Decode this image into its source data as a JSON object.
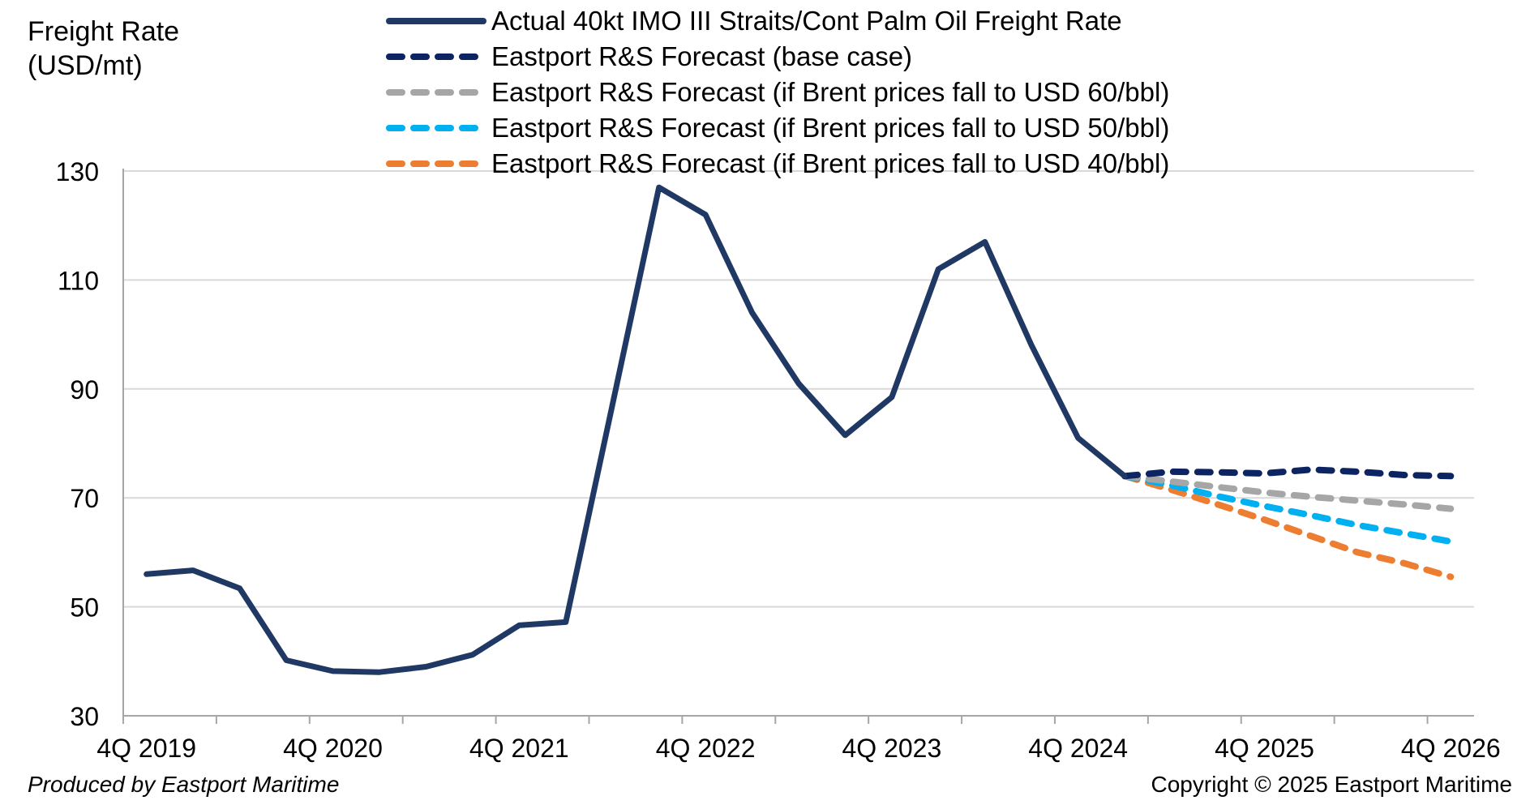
{
  "chart_data": {
    "type": "line",
    "ylabel": "Freight Rate\n(USD/mt)",
    "xlabel": "",
    "ylim": [
      30,
      130
    ],
    "yticks": [
      30,
      50,
      70,
      90,
      110,
      130
    ],
    "xtick_labels": [
      "4Q 2019",
      "4Q 2020",
      "4Q 2021",
      "4Q 2022",
      "4Q 2023",
      "4Q 2024",
      "4Q 2025",
      "4Q 2026"
    ],
    "grid": "horizontal",
    "legend_position": "top-center",
    "x": [
      "4Q 2019",
      "1Q 2020",
      "2Q 2020",
      "3Q 2020",
      "4Q 2020",
      "1Q 2021",
      "2Q 2021",
      "3Q 2021",
      "4Q 2021",
      "1Q 2022",
      "2Q 2022",
      "3Q 2022",
      "4Q 2022",
      "1Q 2023",
      "2Q 2023",
      "3Q 2023",
      "4Q 2023",
      "1Q 2024",
      "2Q 2024",
      "3Q 2024",
      "4Q 2024",
      "1Q 2025",
      "2Q 2025",
      "3Q 2025",
      "4Q 2025",
      "1Q 2026",
      "2Q 2026",
      "3Q 2026",
      "4Q 2026"
    ],
    "series": [
      {
        "name": "Actual 40kt IMO III Straits/Cont Palm Oil Freight Rate",
        "color": "#1f3864",
        "style": "solid",
        "values": [
          56,
          56.7,
          53.4,
          40.2,
          38.2,
          38,
          39,
          41.2,
          46.6,
          47.2,
          87,
          127,
          122,
          104,
          91,
          81.5,
          88.5,
          112,
          117,
          98,
          81,
          74,
          null,
          null,
          null,
          null,
          null,
          null,
          null
        ]
      },
      {
        "name": "Eastport R&S Forecast (base case)",
        "color": "#0c2461",
        "style": "dashed",
        "values": [
          null,
          null,
          null,
          null,
          null,
          null,
          null,
          null,
          null,
          null,
          null,
          null,
          null,
          null,
          null,
          null,
          null,
          null,
          null,
          null,
          null,
          74,
          74.8,
          74.7,
          74.5,
          75.2,
          74.8,
          74.2,
          74
        ]
      },
      {
        "name": "Eastport R&S Forecast (if Brent prices fall to USD 60/bbl)",
        "color": "#a6a6a6",
        "style": "dashed",
        "values": [
          null,
          null,
          null,
          null,
          null,
          null,
          null,
          null,
          null,
          null,
          null,
          null,
          null,
          null,
          null,
          null,
          null,
          null,
          null,
          null,
          null,
          74,
          73,
          72,
          71,
          70.2,
          69.5,
          68.8,
          68
        ]
      },
      {
        "name": "Eastport R&S Forecast (if Brent prices fall to USD 50/bbl)",
        "color": "#00b0f0",
        "style": "dashed",
        "values": [
          null,
          null,
          null,
          null,
          null,
          null,
          null,
          null,
          null,
          null,
          null,
          null,
          null,
          null,
          null,
          null,
          null,
          null,
          null,
          null,
          null,
          74,
          72.3,
          70.3,
          68.5,
          66.8,
          65,
          63.5,
          62
        ]
      },
      {
        "name": "Eastport R&S Forecast (if Brent prices fall to USD 40/bbl)",
        "color": "#ed7d31",
        "style": "dashed",
        "values": [
          null,
          null,
          null,
          null,
          null,
          null,
          null,
          null,
          null,
          null,
          null,
          null,
          null,
          null,
          null,
          null,
          null,
          null,
          null,
          null,
          null,
          74,
          71.5,
          68.8,
          66,
          63,
          60,
          58,
          55.5
        ]
      }
    ]
  },
  "footer": {
    "producer": "Produced by Eastport Maritime",
    "copyright": "Copyright © 2025 Eastport Maritime"
  }
}
